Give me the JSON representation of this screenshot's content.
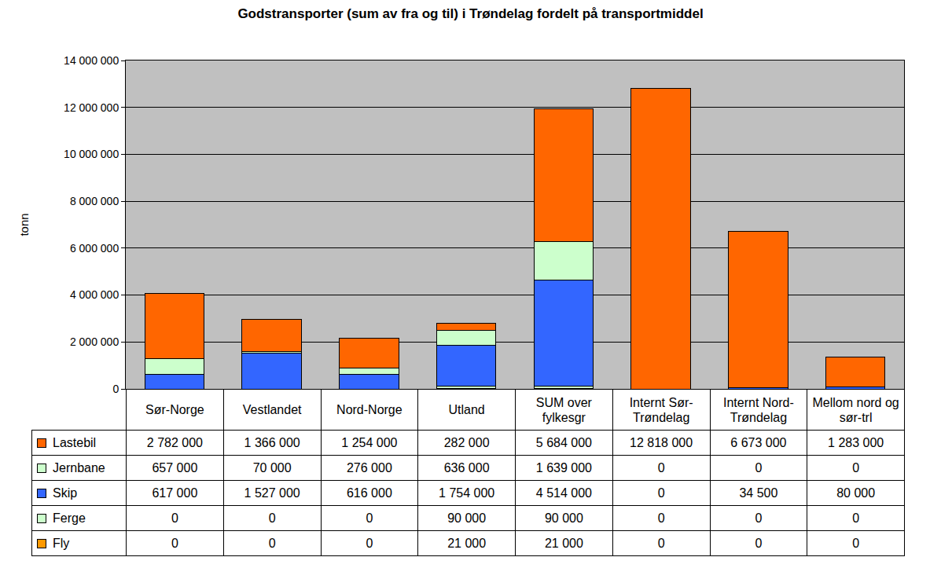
{
  "chart_data": {
    "type": "bar",
    "title": "Godstransporter (sum av fra og til) i Trøndelag fordelt på transportmiddel",
    "ylabel": "tonn",
    "categories": [
      "Sør-Norge",
      "Vestlandet",
      "Nord-Norge",
      "Utland",
      "SUM over fylkesgr",
      "Internt Sør-Trøndelag",
      "Internt Nord-Trøndelag",
      "Mellom nord og sør-trl"
    ],
    "series": [
      {
        "name": "Lastebil",
        "color": "#ff6600",
        "values": [
          2782000,
          1366000,
          1254000,
          282000,
          5684000,
          12818000,
          6673000,
          1283000
        ],
        "value_labels": [
          "2 782 000",
          "1 366 000",
          "1 254 000",
          "282 000",
          "5 684 000",
          "12 818 000",
          "6 673 000",
          "1 283 000"
        ]
      },
      {
        "name": "Jernbane",
        "color": "#ccffcc",
        "values": [
          657000,
          70000,
          276000,
          636000,
          1639000,
          0,
          0,
          0
        ],
        "value_labels": [
          "657 000",
          "70 000",
          "276 000",
          "636 000",
          "1 639 000",
          "0",
          "0",
          "0"
        ]
      },
      {
        "name": "Skip",
        "color": "#3366ff",
        "values": [
          617000,
          1527000,
          616000,
          1754000,
          4514000,
          0,
          34500,
          80000
        ],
        "value_labels": [
          "617 000",
          "1 527 000",
          "616 000",
          "1 754 000",
          "4 514 000",
          "0",
          "34 500",
          "80 000"
        ]
      },
      {
        "name": "Ferge",
        "color": "#ccffcc",
        "values": [
          0,
          0,
          0,
          90000,
          90000,
          0,
          0,
          0
        ],
        "value_labels": [
          "0",
          "0",
          "0",
          "90 000",
          "90 000",
          "0",
          "0",
          "0"
        ]
      },
      {
        "name": "Fly",
        "color": "#ff9900",
        "values": [
          0,
          0,
          0,
          21000,
          21000,
          0,
          0,
          0
        ],
        "value_labels": [
          "0",
          "0",
          "0",
          "21 000",
          "21 000",
          "0",
          "0",
          "0"
        ]
      }
    ],
    "ylim": [
      0,
      14000000
    ],
    "yticks": [
      0,
      {
        "value": 2000000,
        "label": "2 000 000"
      },
      {
        "value": 4000000,
        "label": "4 000 000"
      },
      {
        "value": 6000000,
        "label": "6 000 000"
      },
      {
        "value": 8000000,
        "label": "8 000 000"
      },
      {
        "value": 10000000,
        "label": "10 000 000"
      },
      {
        "value": 12000000,
        "label": "12 000 000"
      },
      {
        "value": 14000000,
        "label": "14 000 000"
      }
    ],
    "stacked": true,
    "grid": true,
    "tick_labels": "y"
  }
}
